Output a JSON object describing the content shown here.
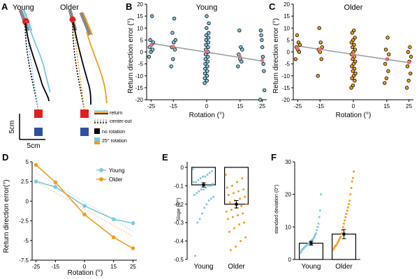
{
  "colors": {
    "young": "#7dc8e0",
    "older": "#f39c1f",
    "black": "#000000",
    "red": "#e02020",
    "blue": "#3050a0",
    "grey": "#999999",
    "pink": "#f07080"
  },
  "panel_a": {
    "label": "A",
    "young_title": "Young",
    "older_title": "Older",
    "scale_y": "5cm",
    "scale_x": "5cm",
    "legend": [
      "return",
      "center-out",
      "no rotation",
      "25° rotation"
    ]
  },
  "chart_data": [
    {
      "panel": "B",
      "type": "scatter",
      "title": "Young",
      "xlabel": "Rotation (°)",
      "ylabel": "Return direction error (°)",
      "xlim": [
        -27,
        27
      ],
      "ylim": [
        -20,
        20
      ],
      "xticks": [
        -25,
        -15,
        0,
        15,
        25
      ],
      "yticks": [
        -20,
        -15,
        -10,
        -5,
        0,
        5,
        10,
        15,
        20
      ],
      "point_fill": "#7dc8e0",
      "regression": {
        "x": [
          -25,
          25
        ],
        "y": [
          3.6,
          -3.8
        ]
      },
      "means": [
        [
          -25,
          3
        ],
        [
          -15,
          2.2
        ],
        [
          0,
          0.3
        ],
        [
          15,
          -2
        ],
        [
          25,
          -3.5
        ]
      ],
      "points": [
        [
          -25,
          15
        ],
        [
          -25,
          5
        ],
        [
          -25,
          4
        ],
        [
          -25,
          3
        ],
        [
          -25,
          2
        ],
        [
          -25,
          1
        ],
        [
          -25,
          0
        ],
        [
          -25,
          -2
        ],
        [
          -15,
          14
        ],
        [
          -15,
          8
        ],
        [
          -15,
          5
        ],
        [
          -15,
          4
        ],
        [
          -15,
          2
        ],
        [
          -15,
          1
        ],
        [
          -15,
          -3
        ],
        [
          -15,
          -6
        ],
        [
          0,
          15
        ],
        [
          0,
          12
        ],
        [
          0,
          10
        ],
        [
          0,
          8
        ],
        [
          0,
          7
        ],
        [
          0,
          6
        ],
        [
          0,
          5
        ],
        [
          0,
          4
        ],
        [
          0,
          3
        ],
        [
          0,
          2
        ],
        [
          0,
          1
        ],
        [
          0,
          0
        ],
        [
          0,
          -1
        ],
        [
          0,
          -2
        ],
        [
          0,
          -3
        ],
        [
          0,
          -4
        ],
        [
          0,
          -5
        ],
        [
          0,
          -6
        ],
        [
          0,
          -7
        ],
        [
          0,
          -8
        ],
        [
          0,
          -9
        ],
        [
          0,
          -10
        ],
        [
          0,
          -11
        ],
        [
          0,
          -12
        ],
        [
          0,
          -13
        ],
        [
          15,
          9
        ],
        [
          15,
          2
        ],
        [
          15,
          1
        ],
        [
          15,
          -1
        ],
        [
          15,
          -3
        ],
        [
          15,
          -4
        ],
        [
          15,
          -6
        ],
        [
          25,
          9
        ],
        [
          25,
          7
        ],
        [
          25,
          5
        ],
        [
          25,
          2
        ],
        [
          25,
          -2
        ],
        [
          25,
          -5
        ],
        [
          25,
          -8
        ],
        [
          25,
          -16
        ],
        [
          25,
          -20
        ]
      ]
    },
    {
      "panel": "C",
      "type": "scatter",
      "title": "Older",
      "xlabel": "Rotation (°)",
      "ylabel": "Return direction error (°)",
      "xlim": [
        -27,
        27
      ],
      "ylim": [
        -20,
        20
      ],
      "xticks": [
        -25,
        -15,
        0,
        15,
        25
      ],
      "yticks": [
        -20,
        -15,
        -10,
        -5,
        0,
        5,
        10,
        15,
        20
      ],
      "point_fill": "#f39c1f",
      "regression": {
        "x": [
          -25,
          25
        ],
        "y": [
          2.5,
          -4.5
        ]
      },
      "means": [
        [
          -25,
          1.5
        ],
        [
          -15,
          1
        ],
        [
          0,
          -1
        ],
        [
          15,
          -3
        ],
        [
          25,
          -4.5
        ]
      ],
      "points": [
        [
          -25,
          7
        ],
        [
          -25,
          4
        ],
        [
          -25,
          3
        ],
        [
          -25,
          2
        ],
        [
          -25,
          1
        ],
        [
          -25,
          0
        ],
        [
          -25,
          -3
        ],
        [
          -15,
          10
        ],
        [
          -15,
          4
        ],
        [
          -15,
          2
        ],
        [
          -15,
          1
        ],
        [
          -15,
          0
        ],
        [
          -15,
          -3
        ],
        [
          -15,
          -10
        ],
        [
          0,
          9
        ],
        [
          0,
          8
        ],
        [
          0,
          6
        ],
        [
          0,
          5
        ],
        [
          0,
          4
        ],
        [
          0,
          3
        ],
        [
          0,
          2
        ],
        [
          0,
          1
        ],
        [
          0,
          0
        ],
        [
          0,
          -1
        ],
        [
          0,
          -2
        ],
        [
          0,
          -3
        ],
        [
          0,
          -4
        ],
        [
          0,
          -5
        ],
        [
          0,
          -6
        ],
        [
          0,
          -7
        ],
        [
          0,
          -8
        ],
        [
          0,
          -9
        ],
        [
          0,
          -10
        ],
        [
          0,
          -11
        ],
        [
          0,
          -12
        ],
        [
          0,
          -14
        ],
        [
          0,
          -15
        ],
        [
          15,
          6
        ],
        [
          15,
          1
        ],
        [
          15,
          -1
        ],
        [
          15,
          -3
        ],
        [
          15,
          -5
        ],
        [
          15,
          -8
        ],
        [
          15,
          -11
        ],
        [
          15,
          -13
        ],
        [
          25,
          2
        ],
        [
          25,
          0
        ],
        [
          25,
          -2
        ],
        [
          25,
          -4
        ],
        [
          25,
          -6
        ],
        [
          25,
          -9
        ],
        [
          25,
          -12
        ],
        [
          25,
          -15
        ]
      ]
    },
    {
      "panel": "D",
      "type": "line",
      "title": "",
      "xlabel": "Rotation (°)",
      "ylabel": "Return direction error(°)",
      "xlim": [
        -27,
        27
      ],
      "ylim": [
        -7.5,
        5
      ],
      "xticks": [
        -25,
        -15,
        0,
        15,
        25
      ],
      "yticks": [
        5,
        2.5,
        0,
        -2.5,
        -5,
        -7.5
      ],
      "ytick_labels": [
        "5",
        "2.5",
        "0",
        "-2.5",
        "-5",
        "-7.5"
      ],
      "x": [
        -25,
        -15,
        0,
        15,
        25
      ],
      "series": [
        {
          "name": "Young",
          "color": "#7dc8e0",
          "values": [
            2.5,
            1.8,
            -0.6,
            -2.3,
            -2.8
          ],
          "fit": [
            [
              -25,
              3.6
            ],
            [
              25,
              -3.8
            ]
          ]
        },
        {
          "name": "Older",
          "color": "#f39c1f",
          "values": [
            4.6,
            2.4,
            -1.7,
            -4.6,
            -6.0
          ],
          "fit": [
            [
              -25,
              2.5
            ],
            [
              25,
              -4.5
            ]
          ]
        }
      ],
      "legend": "top-right"
    },
    {
      "panel": "E",
      "type": "bar",
      "title": "",
      "xlabel": "",
      "ylabel": "Slope (1/°)",
      "ylim": [
        -0.5,
        0.03
      ],
      "yticks": [
        0,
        -0.1,
        -0.2,
        -0.3,
        -0.4,
        -0.5
      ],
      "ytick_labels": [
        "0",
        "-0.1",
        "-0.2",
        "-0.3",
        "-0.4",
        "-0.5"
      ],
      "categories": [
        "Young",
        "Older"
      ],
      "values": [
        -0.095,
        -0.2
      ],
      "errors": [
        0.012,
        0.02
      ],
      "points": [
        [
          -0.01,
          -0.02,
          -0.03,
          -0.04,
          -0.05,
          -0.05,
          -0.06,
          -0.07,
          -0.08,
          -0.08,
          -0.09,
          -0.1,
          -0.1,
          -0.11,
          -0.12,
          -0.12,
          -0.13,
          -0.14,
          -0.15,
          -0.16,
          -0.17,
          -0.18,
          -0.2,
          -0.22,
          -0.25,
          -0.28,
          -0.3,
          -0.48
        ],
        [
          -0.04,
          -0.06,
          -0.08,
          -0.1,
          -0.11,
          -0.12,
          -0.13,
          -0.14,
          -0.15,
          -0.16,
          -0.17,
          -0.18,
          -0.19,
          -0.2,
          -0.21,
          -0.22,
          -0.23,
          -0.24,
          -0.25,
          -0.26,
          -0.27,
          -0.28,
          -0.3,
          -0.31,
          -0.33,
          -0.35,
          -0.38,
          -0.4,
          -0.43,
          -0.45
        ]
      ]
    },
    {
      "panel": "F",
      "type": "bar",
      "title": "",
      "xlabel": "",
      "ylabel": "standard deviation (0°)",
      "ylim": [
        0,
        30
      ],
      "yticks": [
        0,
        10,
        20,
        30
      ],
      "ytick_labels": [
        "0",
        "10",
        "20",
        "30"
      ],
      "categories": [
        "Young",
        "Older"
      ],
      "values": [
        5,
        7.8
      ],
      "errors": [
        0.6,
        1.4
      ],
      "points": [
        [
          2,
          2.5,
          3,
          3.2,
          3.5,
          3.8,
          4,
          4.2,
          4.5,
          4.7,
          5,
          5.2,
          5.4,
          5.6,
          6,
          6.2,
          6.5,
          7,
          7.5,
          8,
          9,
          10,
          11,
          13,
          15,
          20
        ],
        [
          3,
          3.5,
          4,
          4.2,
          4.5,
          5,
          5.5,
          6,
          6.5,
          7,
          8,
          9,
          10,
          11,
          12,
          13,
          14,
          15,
          16,
          17,
          18,
          20,
          22,
          24,
          25,
          27
        ]
      ]
    }
  ]
}
